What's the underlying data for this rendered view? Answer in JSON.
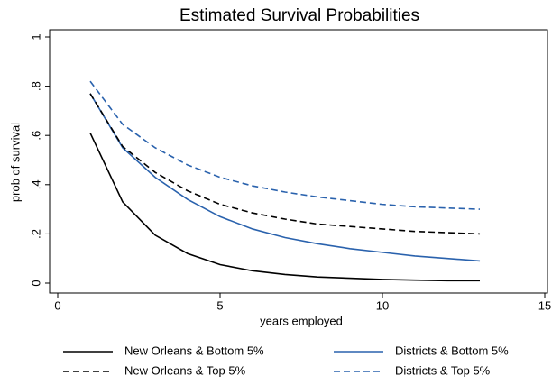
{
  "chart_data": {
    "type": "line",
    "title": "Estimated Survival Probabilities",
    "x_label": "years employed",
    "y_label": "prob of survival",
    "x": [
      1,
      2,
      3,
      4,
      5,
      6,
      7,
      8,
      9,
      10,
      11,
      12,
      13
    ],
    "series": [
      {
        "name": "New Orleans & Bottom 5%",
        "color": "#000000",
        "dashed": false,
        "values": [
          0.61,
          0.33,
          0.195,
          0.12,
          0.075,
          0.05,
          0.035,
          0.025,
          0.02,
          0.015,
          0.012,
          0.01,
          0.01
        ]
      },
      {
        "name": "Districts & Bottom 5%",
        "color": "#2a62ad",
        "dashed": false,
        "values": [
          0.77,
          0.55,
          0.43,
          0.34,
          0.27,
          0.22,
          0.185,
          0.16,
          0.14,
          0.125,
          0.11,
          0.1,
          0.09
        ]
      },
      {
        "name": "New Orleans & Top 5%",
        "color": "#000000",
        "dashed": true,
        "values": [
          0.77,
          0.555,
          0.45,
          0.375,
          0.32,
          0.285,
          0.26,
          0.24,
          0.23,
          0.22,
          0.21,
          0.205,
          0.2
        ]
      },
      {
        "name": "Districts & Top 5%",
        "color": "#2a62ad",
        "dashed": true,
        "values": [
          0.82,
          0.645,
          0.55,
          0.48,
          0.43,
          0.395,
          0.37,
          0.35,
          0.335,
          0.32,
          0.31,
          0.305,
          0.3
        ]
      }
    ],
    "xlim": [
      0,
      15
    ],
    "xticks": [
      0,
      5,
      10,
      15
    ],
    "ylim": [
      0,
      1
    ],
    "yticks": [
      0,
      {
        "value": 0.2,
        "label": ".2"
      },
      {
        "value": 0.4,
        "label": ".4"
      },
      {
        "value": 0.6,
        "label": ".6"
      },
      {
        "value": 0.8,
        "label": ".8"
      },
      1
    ],
    "grid": false
  }
}
